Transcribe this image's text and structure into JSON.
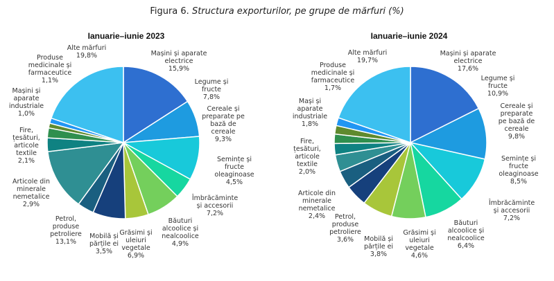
{
  "figure": {
    "label": "Figura 6.",
    "caption": "Structura exporturilor, pe grupe de mărfuri (%)"
  },
  "chart_data": [
    {
      "type": "pie",
      "title": "Ianuarie–iunie 2023",
      "slices": [
        {
          "name": "Mașini și aparate electrice",
          "value": 15.9,
          "label": "15,9%",
          "color": "#2E6FD0"
        },
        {
          "name": "Legume și fructe",
          "value": 7.8,
          "label": "7,8%",
          "color": "#1E9BE0"
        },
        {
          "name": "Cereale și preparate pe bază de cereale",
          "value": 9.3,
          "label": "9,3%",
          "color": "#18C9DA"
        },
        {
          "name": "Semințe și fructe oleaginoase",
          "value": 4.5,
          "label": "4,5%",
          "color": "#16D7A0"
        },
        {
          "name": "Îmbrăcăminte și accesorii",
          "value": 7.2,
          "label": "7,2%",
          "color": "#74CF5C"
        },
        {
          "name": "Băuturi alcoolice și nealcoolice",
          "value": 4.9,
          "label": "4,9%",
          "color": "#A8C63A"
        },
        {
          "name": "Grăsimi și uleiuri vegetale",
          "value": 6.9,
          "label": "6,9%",
          "color": "#16407C"
        },
        {
          "name": "Mobilă și părțile ei",
          "value": 3.5,
          "label": "3,5%",
          "color": "#1A5F80"
        },
        {
          "name": "Petrol, produse petroliere",
          "value": 13.1,
          "label": "13,1%",
          "color": "#2F8F93"
        },
        {
          "name": "Articole din minerale nemetalice",
          "value": 2.9,
          "label": "2,9%",
          "color": "#0F8282"
        },
        {
          "name": "Fire, țesături, articole textile",
          "value": 2.1,
          "label": "2,1%",
          "color": "#2F8F4E"
        },
        {
          "name": "Mașini și aparate industriale",
          "value": 1.0,
          "label": "1,0%",
          "color": "#5F8A2E"
        },
        {
          "name": "Produse medicinale și farmaceutice",
          "value": 1.1,
          "label": "1,1%",
          "color": "#2196F3"
        },
        {
          "name": "Alte mărfuri",
          "value": 19.8,
          "label": "19,8%",
          "color": "#3CC0F0"
        }
      ]
    },
    {
      "type": "pie",
      "title": "Ianuarie–iunie 2024",
      "slices": [
        {
          "name": "Mașini și aparate electrice",
          "value": 17.6,
          "label": "17,6%",
          "color": "#2E6FD0"
        },
        {
          "name": "Legume și fructe",
          "value": 10.9,
          "label": "10,9%",
          "color": "#1E9BE0"
        },
        {
          "name": "Cereale și preparate pe bază de cereale",
          "value": 9.8,
          "label": "9,8%",
          "color": "#18C9DA"
        },
        {
          "name": "Semințe și fructe oleaginoase",
          "value": 8.5,
          "label": "8,5%",
          "color": "#16D7A0"
        },
        {
          "name": "Îmbrăcăminte și accesorii",
          "value": 7.2,
          "label": "7,2%",
          "color": "#74CF5C"
        },
        {
          "name": "Băuturi alcoolice și nealcoolice",
          "value": 6.4,
          "label": "6,4%",
          "color": "#A8C63A"
        },
        {
          "name": "Grăsimi și uleiuri vegetale",
          "value": 4.6,
          "label": "4,6%",
          "color": "#16407C"
        },
        {
          "name": "Mobilă și părțile ei",
          "value": 3.8,
          "label": "3,8%",
          "color": "#1A5F80"
        },
        {
          "name": "Petrol, produse petroliere",
          "value": 3.6,
          "label": "3,6%",
          "color": "#2F8F93"
        },
        {
          "name": "Articole din minerale nemetalice",
          "value": 2.4,
          "label": "2,4%",
          "color": "#0F8282"
        },
        {
          "name": "Fire, țesături, articole textile",
          "value": 2.0,
          "label": "2,0%",
          "color": "#2F8F4E"
        },
        {
          "name": "Mașini și aparate industriale",
          "value": 1.8,
          "label": "1,8%",
          "color": "#5F8A2E"
        },
        {
          "name": "Produse medicinale și farmaceutice",
          "value": 1.7,
          "label": "1,7%",
          "color": "#2196F3"
        },
        {
          "name": "Alte mărfuri",
          "value": 19.7,
          "label": "19,7%",
          "color": "#3CC0F0"
        }
      ]
    }
  ]
}
